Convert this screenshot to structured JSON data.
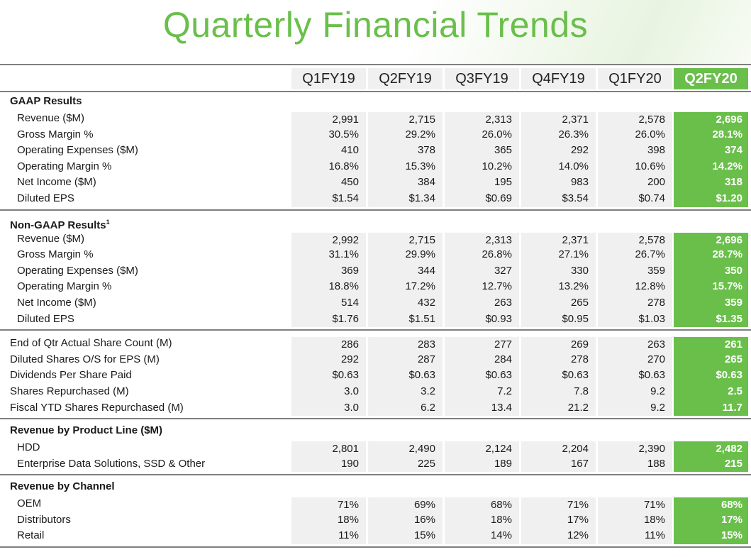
{
  "title": "Quarterly Financial Trends",
  "quarters": [
    "Q1FY19",
    "Q2FY19",
    "Q3FY19",
    "Q4FY19",
    "Q1FY20",
    "Q2FY20"
  ],
  "highlight_color": "#6abf4b",
  "sections": [
    {
      "heading": "GAAP Results",
      "footnote": "",
      "rows": [
        {
          "label": "Revenue ($M)",
          "values": [
            "2,991",
            "2,715",
            "2,313",
            "2,371",
            "2,578",
            "2,696"
          ]
        },
        {
          "label": "Gross Margin %",
          "values": [
            "30.5%",
            "29.2%",
            "26.0%",
            "26.3%",
            "26.0%",
            "28.1%"
          ]
        },
        {
          "label": "Operating Expenses ($M)",
          "values": [
            "410",
            "378",
            "365",
            "292",
            "398",
            "374"
          ]
        },
        {
          "label": "Operating Margin %",
          "values": [
            "16.8%",
            "15.3%",
            "10.2%",
            "14.0%",
            "10.6%",
            "14.2%"
          ]
        },
        {
          "label": "Net Income ($M)",
          "values": [
            "450",
            "384",
            "195",
            "983",
            "200",
            "318"
          ]
        },
        {
          "label": "Diluted EPS",
          "values": [
            "$1.54",
            "$1.34",
            "$0.69",
            "$3.54",
            "$0.74",
            "$1.20"
          ]
        }
      ]
    },
    {
      "heading": "Non-GAAP Results",
      "footnote": "1",
      "rows": [
        {
          "label": "Revenue ($M)",
          "values": [
            "2,992",
            "2,715",
            "2,313",
            "2,371",
            "2,578",
            "2,696"
          ]
        },
        {
          "label": "Gross Margin %",
          "values": [
            "31.1%",
            "29.9%",
            "26.8%",
            "27.1%",
            "26.7%",
            "28.7%"
          ]
        },
        {
          "label": "Operating Expenses ($M)",
          "values": [
            "369",
            "344",
            "327",
            "330",
            "359",
            "350"
          ]
        },
        {
          "label": "Operating Margin %",
          "values": [
            "18.8%",
            "17.2%",
            "12.7%",
            "13.2%",
            "12.8%",
            "15.7%"
          ]
        },
        {
          "label": "Net Income ($M)",
          "values": [
            "514",
            "432",
            "263",
            "265",
            "278",
            "359"
          ]
        },
        {
          "label": "Diluted EPS",
          "values": [
            "$1.76",
            "$1.51",
            "$0.93",
            "$0.95",
            "$1.03",
            "$1.35"
          ]
        }
      ]
    },
    {
      "heading": "",
      "footnote": "",
      "rows": [
        {
          "label": "End of Qtr Actual Share Count (M)",
          "values": [
            "286",
            "283",
            "277",
            "269",
            "263",
            "261"
          ]
        },
        {
          "label": "Diluted Shares O/S for EPS (M)",
          "values": [
            "292",
            "287",
            "284",
            "278",
            "270",
            "265"
          ]
        },
        {
          "label": "Dividends Per Share Paid",
          "values": [
            "$0.63",
            "$0.63",
            "$0.63",
            "$0.63",
            "$0.63",
            "$0.63"
          ]
        },
        {
          "label": "Shares Repurchased (M)",
          "values": [
            "3.0",
            "3.2",
            "7.2",
            "7.8",
            "9.2",
            "2.5"
          ]
        },
        {
          "label": "Fiscal YTD Shares Repurchased (M)",
          "values": [
            "3.0",
            "6.2",
            "13.4",
            "21.2",
            "9.2",
            "11.7"
          ]
        }
      ]
    },
    {
      "heading": "Revenue by Product Line ($M)",
      "footnote": "",
      "rows": [
        {
          "label": "HDD",
          "values": [
            "2,801",
            "2,490",
            "2,124",
            "2,204",
            "2,390",
            "2,482"
          ]
        },
        {
          "label": "Enterprise Data Solutions, SSD & Other",
          "values": [
            "190",
            "225",
            "189",
            "167",
            "188",
            "215"
          ]
        }
      ]
    },
    {
      "heading": "Revenue by Channel",
      "footnote": "",
      "rows": [
        {
          "label": "OEM",
          "values": [
            "71%",
            "69%",
            "68%",
            "71%",
            "71%",
            "68%"
          ]
        },
        {
          "label": "Distributors",
          "values": [
            "18%",
            "16%",
            "18%",
            "17%",
            "18%",
            "17%"
          ]
        },
        {
          "label": "Retail",
          "values": [
            "11%",
            "15%",
            "14%",
            "12%",
            "11%",
            "15%"
          ]
        }
      ]
    }
  ]
}
